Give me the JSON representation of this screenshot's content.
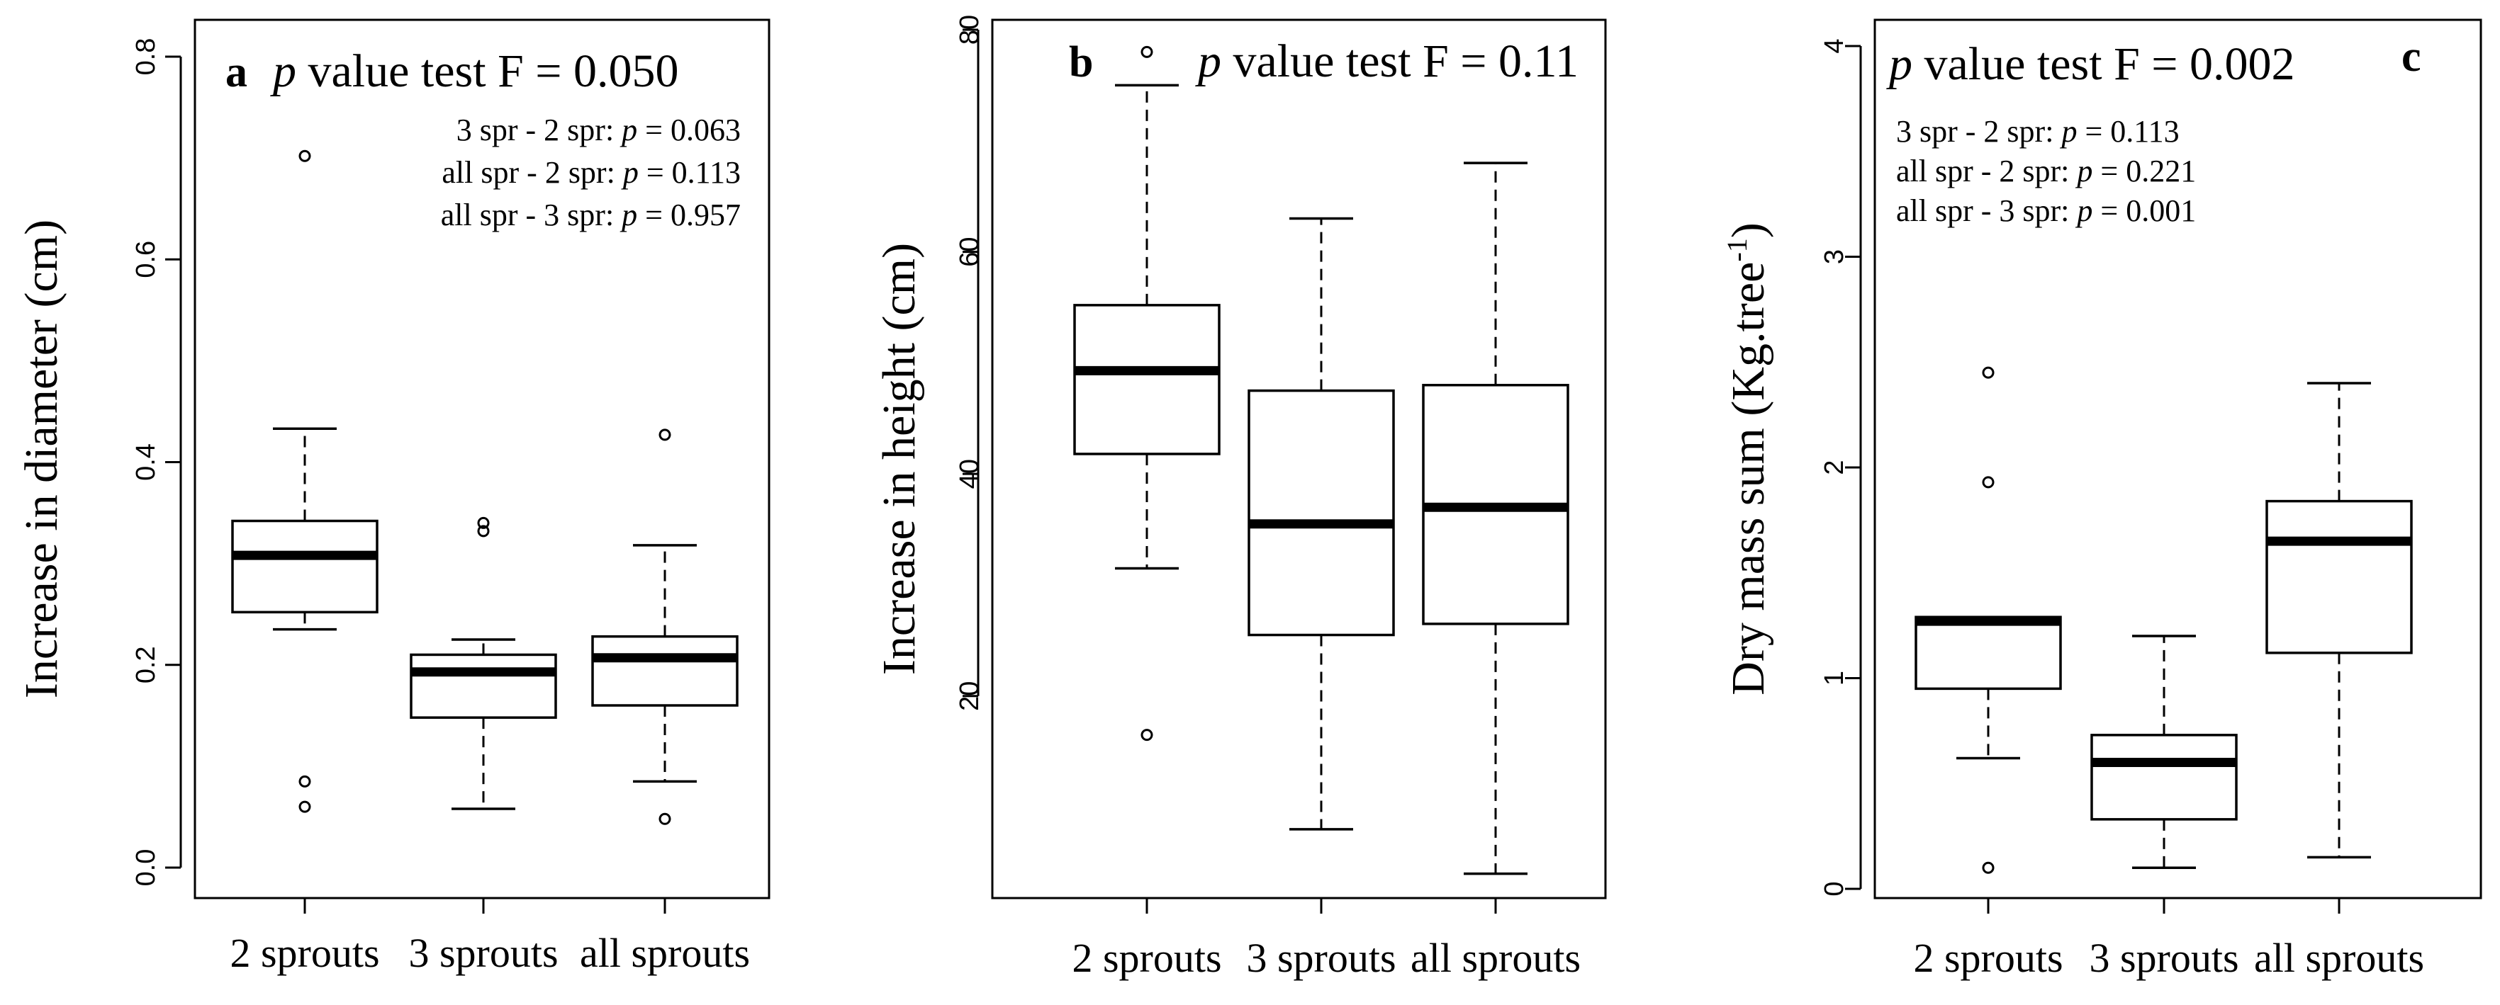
{
  "chart_data": [
    {
      "type": "boxplot",
      "panel": "a",
      "title_p": "p",
      "title_rest": " value test F = 0.050",
      "ylabel": "Increase in diameter (cm)",
      "ylim": [
        0.0,
        0.8
      ],
      "yticks": [
        0.0,
        0.2,
        0.4,
        0.6,
        0.8
      ],
      "ytick_labels": [
        "0.0",
        "0.2",
        "0.4",
        "0.6",
        "0.8"
      ],
      "categories": [
        "2 sprouts",
        "3 sprouts",
        "all sprouts"
      ],
      "notes": [
        {
          "pre": "3 spr - 2 spr: ",
          "p": "p",
          "post": " = 0.063"
        },
        {
          "pre": "all spr - 2 spr: ",
          "p": "p",
          "post": " = 0.113"
        },
        {
          "pre": "all spr - 3 spr: ",
          "p": "p",
          "post": " = 0.957"
        }
      ],
      "boxes": [
        {
          "whislo": 0.235,
          "q1": 0.252,
          "med": 0.308,
          "q3": 0.342,
          "whishi": 0.433,
          "fliers": [
            0.085,
            0.06,
            0.702
          ]
        },
        {
          "whislo": 0.058,
          "q1": 0.148,
          "med": 0.193,
          "q3": 0.21,
          "whishi": 0.225,
          "fliers": [
            0.332,
            0.34
          ]
        },
        {
          "whislo": 0.085,
          "q1": 0.16,
          "med": 0.207,
          "q3": 0.228,
          "whishi": 0.318,
          "fliers": [
            0.048,
            0.427
          ]
        }
      ]
    },
    {
      "type": "boxplot",
      "panel": "b",
      "title_p": "p",
      "title_rest": " value test F = 0.11",
      "ylabel": "Increase in height (cm)",
      "ylim": [
        2,
        80
      ],
      "yticks": [
        20,
        40,
        60,
        80
      ],
      "ytick_labels": [
        "20",
        "40",
        "60",
        "80"
      ],
      "categories": [
        "2 sprouts",
        "3 sprouts",
        "all sprouts"
      ],
      "notes": [],
      "boxes": [
        {
          "whislo": 31.5,
          "q1": 41.8,
          "med": 49.3,
          "q3": 55.2,
          "whishi": 75.0,
          "fliers": [
            16.5,
            78.0
          ]
        },
        {
          "whislo": 8.0,
          "q1": 25.5,
          "med": 35.5,
          "q3": 47.5,
          "whishi": 63.0,
          "fliers": []
        },
        {
          "whislo": 4.0,
          "q1": 26.5,
          "med": 37.0,
          "q3": 48.0,
          "whishi": 68.0,
          "fliers": []
        }
      ]
    },
    {
      "type": "boxplot",
      "panel": "c",
      "title_p": "p",
      "title_rest": " value test F = 0.002",
      "ylabel": "Dry mass sum (Kg.tree-1)",
      "ylabel_main": "Dry mass sum (Kg.tree",
      "ylabel_sup": "-1",
      "ylabel_end": ")",
      "ylim": [
        0,
        4
      ],
      "yticks": [
        0,
        1,
        2,
        3,
        4
      ],
      "ytick_labels": [
        "0",
        "1",
        "2",
        "3",
        "4"
      ],
      "categories": [
        "2 sprouts",
        "3 sprouts",
        "all sprouts"
      ],
      "notes": [
        {
          "pre": "3 spr - 2 spr: ",
          "p": "p",
          "post": " = 0.113"
        },
        {
          "pre": "all spr - 2 spr: ",
          "p": "p",
          "post": " = 0.221"
        },
        {
          "pre": "all spr - 3 spr: ",
          "p": "p",
          "post": " = 0.001"
        }
      ],
      "boxes": [
        {
          "whislo": 0.62,
          "q1": 0.95,
          "med": 1.27,
          "q3": 1.29,
          "whishi": 1.29,
          "fliers": [
            0.1,
            1.93,
            2.45
          ]
        },
        {
          "whislo": 0.1,
          "q1": 0.33,
          "med": 0.6,
          "q3": 0.73,
          "whishi": 1.2,
          "fliers": []
        },
        {
          "whislo": 0.15,
          "q1": 1.12,
          "med": 1.65,
          "q3": 1.84,
          "whishi": 2.4,
          "fliers": []
        }
      ]
    }
  ]
}
